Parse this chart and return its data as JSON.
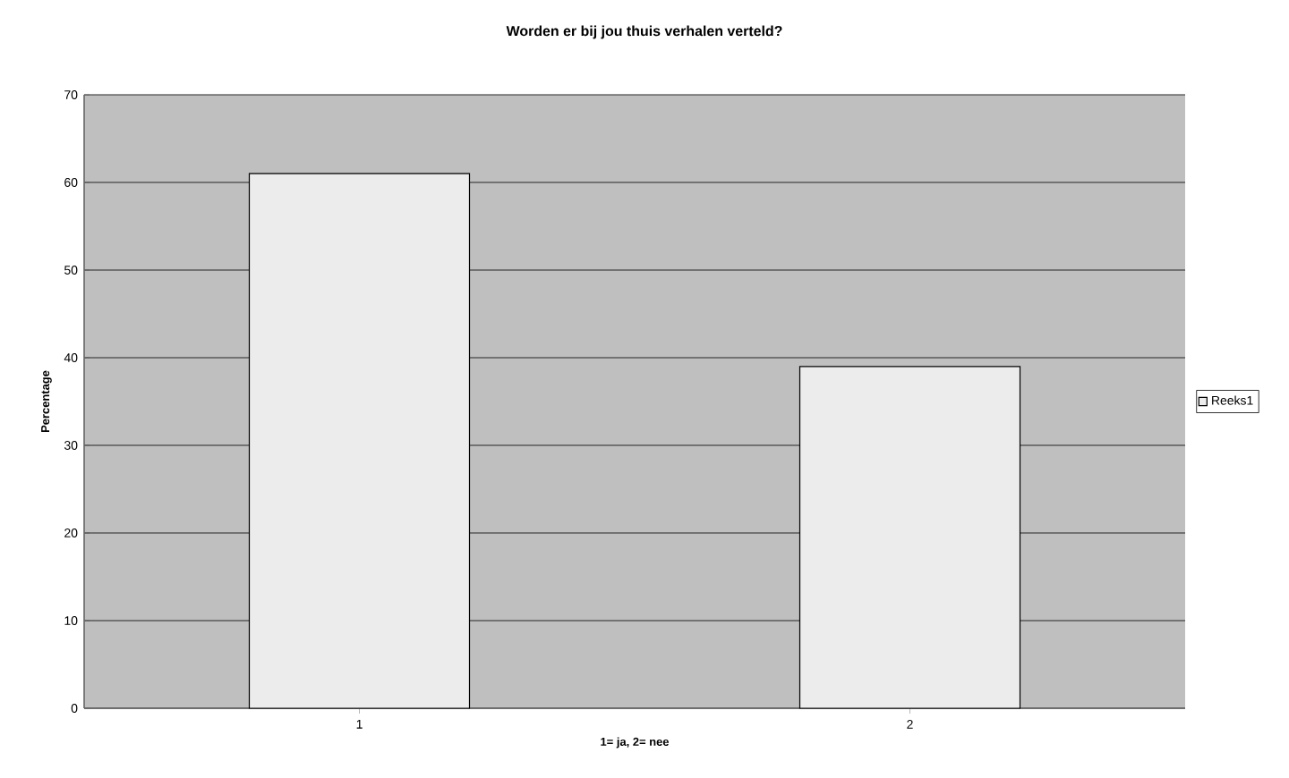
{
  "chart_data": {
    "type": "bar",
    "title": "Worden er bij jou thuis verhalen verteld?",
    "xlabel": "1= ja, 2= nee",
    "ylabel": "Percentage",
    "categories": [
      "1",
      "2"
    ],
    "series": [
      {
        "name": "Reeks1",
        "color": "#ececec",
        "values": [
          61,
          39
        ]
      }
    ],
    "ylim": [
      0,
      70
    ],
    "yticks": [
      0,
      10,
      20,
      30,
      40,
      50,
      60,
      70
    ],
    "grid": "y",
    "legend": "right"
  }
}
